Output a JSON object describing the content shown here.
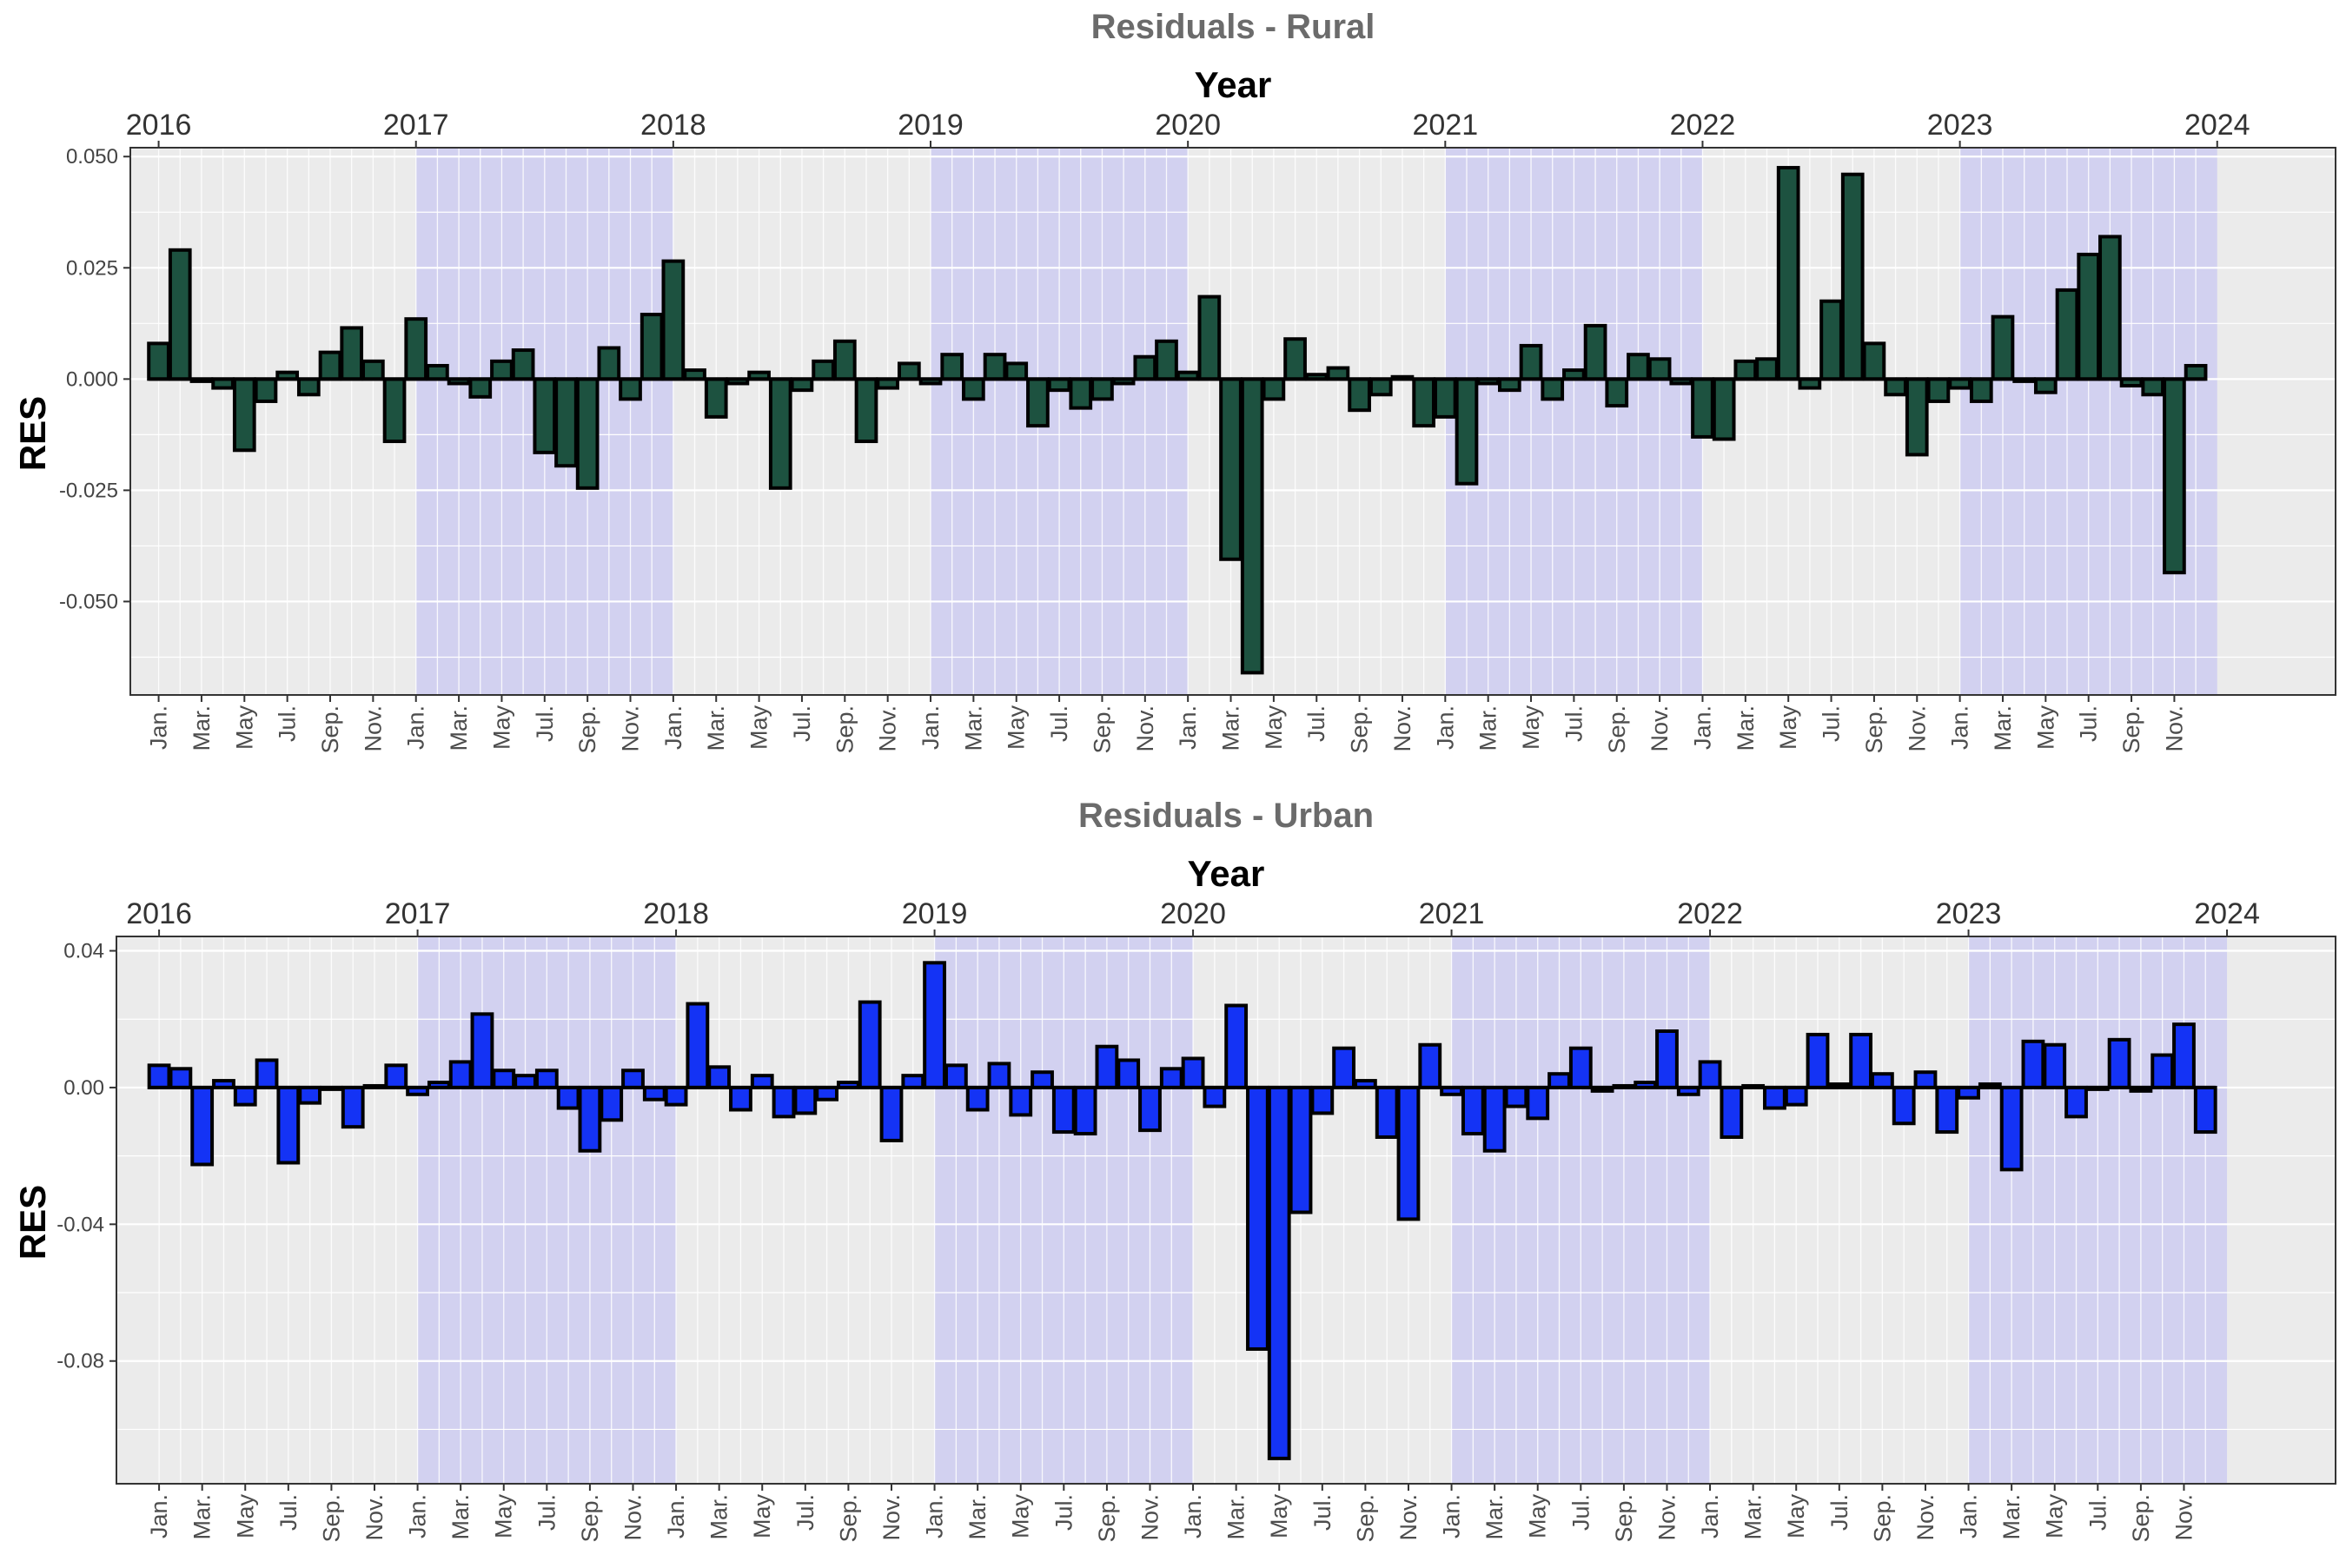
{
  "chart_data": [
    {
      "type": "bar",
      "title": "Residuals - Rural",
      "top_axis_title": "Year",
      "ylabel": "RES",
      "fill_color": "#1d5240",
      "bar_outline": "#000000",
      "panel_background": "#ebebeb",
      "highlight_color": "#d2d1f0",
      "grid": true,
      "legend": "none",
      "ylim": [
        -0.071,
        0.052
      ],
      "yticks": [
        0.05,
        0.025,
        0,
        -0.025,
        -0.05
      ],
      "ytick_labels": [
        "0.050",
        "0.025",
        "0.000",
        "-0.025",
        "-0.050"
      ],
      "xlim": [
        2015.89,
        2024.46
      ],
      "year_ticks": [
        2016,
        2017,
        2018,
        2019,
        2020,
        2021,
        2022,
        2023,
        2024
      ],
      "highlight_years": [
        2017,
        2019,
        2021,
        2023
      ],
      "month_tick_labels": [
        "Jan.",
        "Mar.",
        "May",
        "Jul.",
        "Sep.",
        "Nov."
      ],
      "values": [
        0.008,
        0.029,
        -0.0005,
        -0.002,
        -0.016,
        -0.005,
        0.0015,
        -0.0035,
        0.006,
        0.0115,
        0.004,
        -0.014,
        0.0135,
        0.003,
        -0.001,
        -0.004,
        0.004,
        0.0065,
        -0.0165,
        -0.0195,
        -0.0245,
        0.007,
        -0.0045,
        0.0145,
        0.0265,
        0.002,
        -0.0085,
        -0.001,
        0.0015,
        -0.0245,
        -0.0025,
        0.004,
        0.0085,
        -0.014,
        -0.002,
        0.0035,
        -0.001,
        0.0055,
        -0.0045,
        0.0055,
        0.0035,
        -0.0105,
        -0.0025,
        -0.0065,
        -0.0045,
        -0.001,
        0.005,
        0.0085,
        0.0015,
        0.0185,
        -0.0405,
        -0.066,
        -0.0045,
        0.009,
        0.001,
        0.0025,
        -0.007,
        -0.0035,
        0.0005,
        -0.0105,
        -0.0085,
        -0.0235,
        -0.001,
        -0.0025,
        0.0075,
        -0.0045,
        0.002,
        0.012,
        -0.006,
        0.0055,
        0.0045,
        -0.001,
        -0.013,
        -0.0135,
        0.004,
        0.0045,
        0.0475,
        -0.002,
        0.0175,
        0.046,
        0.008,
        -0.0035,
        -0.017,
        -0.005,
        -0.002,
        -0.005,
        0.014,
        -0.0005,
        -0.003,
        0.02,
        0.028,
        0.032,
        -0.0015,
        -0.0035,
        -0.0435,
        0.003
      ]
    },
    {
      "type": "bar",
      "title": "Residuals - Urban",
      "top_axis_title": "Year",
      "ylabel": "RES",
      "fill_color": "#1433f5",
      "bar_outline": "#000000",
      "panel_background": "#ebebeb",
      "highlight_color": "#d2d1f0",
      "grid": true,
      "legend": "none",
      "ylim": [
        -0.1159,
        0.0442
      ],
      "yticks": [
        0.04,
        0,
        -0.04,
        -0.08
      ],
      "ytick_labels": [
        "0.04",
        "0.00",
        "-0.04",
        "-0.08"
      ],
      "xlim": [
        2015.835,
        2024.42
      ],
      "year_ticks": [
        2016,
        2017,
        2018,
        2019,
        2020,
        2021,
        2022,
        2023,
        2024
      ],
      "highlight_years": [
        2017,
        2019,
        2021,
        2023
      ],
      "month_tick_labels": [
        "Jan.",
        "Mar.",
        "May",
        "Jul.",
        "Sep.",
        "Nov."
      ],
      "values": [
        0.0065,
        0.0055,
        -0.0225,
        0.002,
        -0.005,
        0.008,
        -0.022,
        -0.0045,
        -0.0005,
        -0.0115,
        0.0005,
        0.0065,
        -0.002,
        0.0015,
        0.0075,
        0.0215,
        0.005,
        0.0035,
        0.005,
        -0.006,
        -0.0185,
        -0.0095,
        0.005,
        -0.0035,
        -0.005,
        0.0245,
        0.006,
        -0.0065,
        0.0035,
        -0.0085,
        -0.0075,
        -0.0035,
        0.0015,
        0.025,
        -0.0155,
        0.0035,
        0.0365,
        0.0065,
        -0.0065,
        0.007,
        -0.008,
        0.0045,
        -0.013,
        -0.0135,
        0.012,
        0.008,
        -0.0125,
        0.0055,
        0.0085,
        -0.0055,
        0.024,
        -0.0765,
        -0.1085,
        -0.0365,
        -0.0075,
        0.0115,
        0.002,
        -0.0145,
        -0.0385,
        0.0125,
        -0.002,
        -0.0135,
        -0.0185,
        -0.0055,
        -0.009,
        0.004,
        0.0115,
        -0.001,
        0.0005,
        0.0015,
        0.0165,
        -0.002,
        0.0075,
        -0.0145,
        0.0005,
        -0.006,
        -0.005,
        0.0155,
        0.001,
        0.0155,
        0.004,
        -0.0105,
        0.0045,
        -0.013,
        -0.003,
        0.001,
        -0.024,
        0.0135,
        0.0125,
        -0.0085,
        -0.0005,
        0.014,
        -0.001,
        0.0095,
        0.0185,
        -0.013
      ]
    }
  ]
}
